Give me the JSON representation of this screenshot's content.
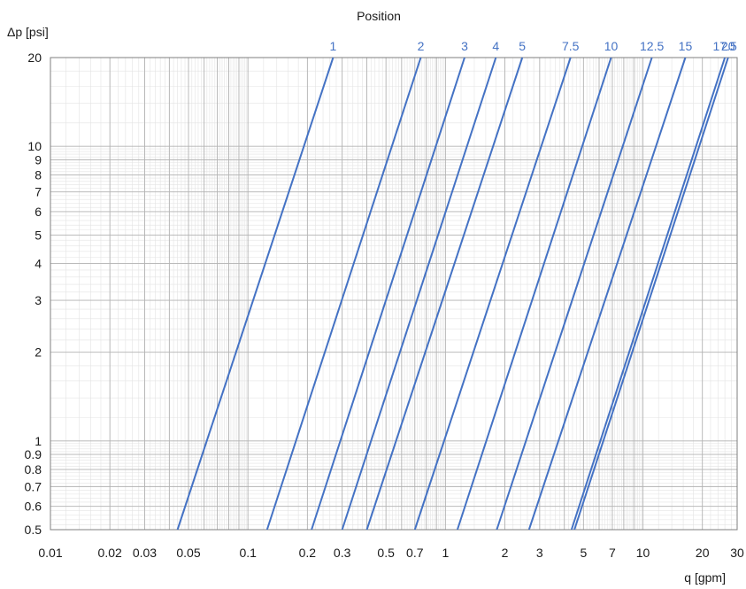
{
  "chart_data": {
    "type": "line",
    "title": "Position",
    "xlabel": "q [gpm]",
    "ylabel": "Δp [psi]",
    "x_scale": "log",
    "y_scale": "log",
    "xlim": [
      0.01,
      30
    ],
    "ylim": [
      0.5,
      20
    ],
    "grid": true,
    "series_color": "#4472c4",
    "x_ticks": [
      {
        "v": 0.01,
        "label": "0.01"
      },
      {
        "v": 0.02,
        "label": "0.02"
      },
      {
        "v": 0.03,
        "label": "0.03"
      },
      {
        "v": 0.05,
        "label": "0.05"
      },
      {
        "v": 0.1,
        "label": "0.1"
      },
      {
        "v": 0.2,
        "label": "0.2"
      },
      {
        "v": 0.3,
        "label": "0.3"
      },
      {
        "v": 0.5,
        "label": "0.5"
      },
      {
        "v": 0.7,
        "label": "0.7"
      },
      {
        "v": 1,
        "label": "1"
      },
      {
        "v": 2,
        "label": "2"
      },
      {
        "v": 3,
        "label": "3"
      },
      {
        "v": 5,
        "label": "5"
      },
      {
        "v": 7,
        "label": "7"
      },
      {
        "v": 10,
        "label": "10"
      },
      {
        "v": 20,
        "label": "20"
      },
      {
        "v": 30,
        "label": "30"
      }
    ],
    "y_ticks": [
      {
        "v": 0.5,
        "label": "0.5"
      },
      {
        "v": 0.6,
        "label": "0.6"
      },
      {
        "v": 0.7,
        "label": "0.7"
      },
      {
        "v": 0.8,
        "label": "0.8"
      },
      {
        "v": 0.9,
        "label": "0.9"
      },
      {
        "v": 1,
        "label": "1"
      },
      {
        "v": 2,
        "label": "2"
      },
      {
        "v": 3,
        "label": "3"
      },
      {
        "v": 4,
        "label": "4"
      },
      {
        "v": 5,
        "label": "5"
      },
      {
        "v": 6,
        "label": "6"
      },
      {
        "v": 7,
        "label": "7"
      },
      {
        "v": 8,
        "label": "8"
      },
      {
        "v": 9,
        "label": "9"
      },
      {
        "v": 10,
        "label": "10"
      },
      {
        "v": 20,
        "label": "20"
      }
    ],
    "series": [
      {
        "name": "1",
        "x": [
          0.044,
          0.27
        ]
      },
      {
        "name": "2",
        "x": [
          0.125,
          0.75
        ]
      },
      {
        "name": "3",
        "x": [
          0.21,
          1.25
        ]
      },
      {
        "name": "4",
        "x": [
          0.3,
          1.8
        ]
      },
      {
        "name": "5",
        "x": [
          0.4,
          2.45
        ]
      },
      {
        "name": "7.5",
        "x": [
          0.7,
          4.3
        ]
      },
      {
        "name": "10",
        "x": [
          1.15,
          6.9
        ]
      },
      {
        "name": "12.5",
        "x": [
          1.82,
          11.1
        ]
      },
      {
        "name": "15",
        "x": [
          2.65,
          16.4
        ]
      },
      {
        "name": "17.5",
        "x": [
          4.35,
          26.0
        ]
      },
      {
        "name": "20",
        "x": [
          4.5,
          27.0
        ]
      }
    ],
    "series_y": [
      0.5,
      20
    ]
  }
}
